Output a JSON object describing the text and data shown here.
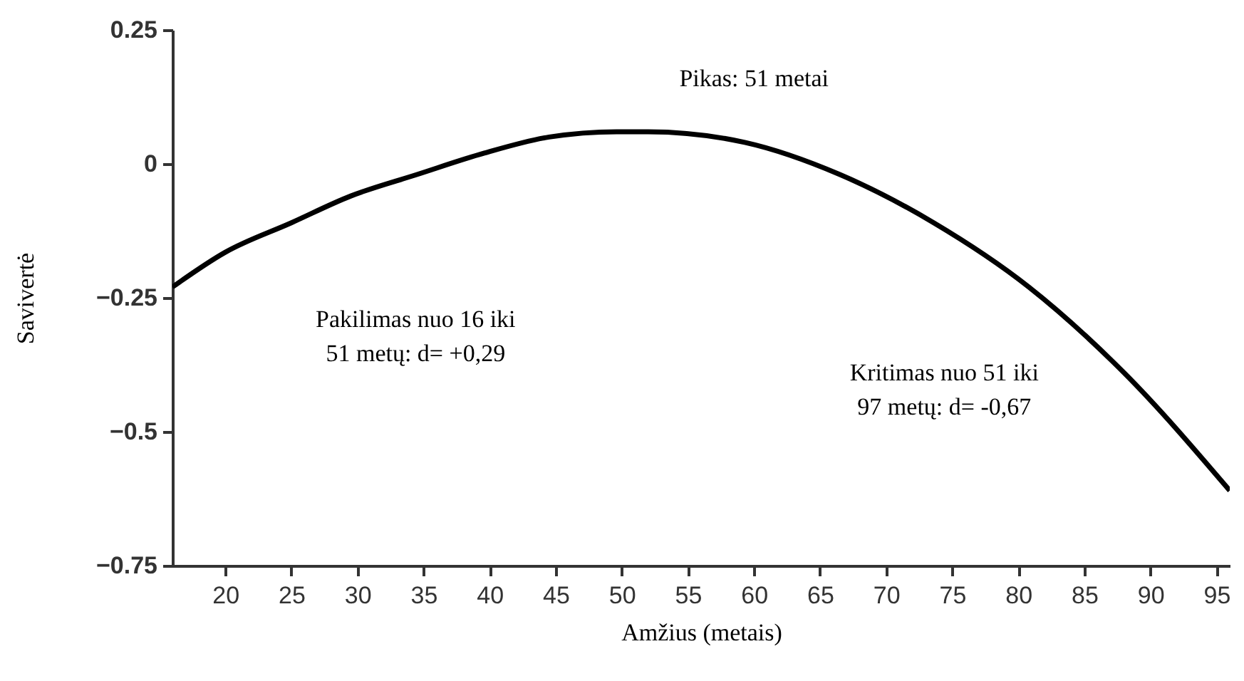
{
  "chart_data": {
    "type": "line",
    "xlabel": "Amžius (metais)",
    "ylabel": "Savivertė",
    "annotations": [
      "Pikas: 51 metai",
      "Pakilimas nuo 16 iki\n51 metų: d= +0,29",
      "Kritimas nuo 51 iki\n97 metų: d= -0,67"
    ],
    "x": [
      16,
      20,
      25,
      29.5,
      34.5,
      39.6,
      44.5,
      49.6,
      52,
      59.3,
      66.5,
      73.6,
      80.8,
      88,
      96
    ],
    "series": [
      {
        "color": "#000000",
        "values": [
          -0.23,
          -0.165,
          -0.11,
          -0.06,
          -0.02,
          0.02,
          0.05,
          0.06,
          0.06,
          0.04,
          -0.02,
          -0.11,
          -0.23,
          -0.39,
          -0.61
        ]
      }
    ],
    "xlim": [
      16,
      96
    ],
    "xticks": [
      20,
      25,
      30,
      35,
      40,
      45,
      50,
      55,
      60,
      65,
      70,
      75,
      80,
      85,
      90,
      95
    ],
    "ylim": [
      -0.75,
      0.25
    ],
    "yticks": [
      {
        "value": 0.25,
        "label": "0.25"
      },
      0,
      {
        "value": -0.25,
        "label": "−0.25"
      },
      {
        "value": -0.5,
        "label": "−0.5"
      },
      {
        "value": -0.75,
        "label": "−0.75"
      }
    ],
    "grid": false,
    "marker": "none",
    "line_style": "solid"
  }
}
